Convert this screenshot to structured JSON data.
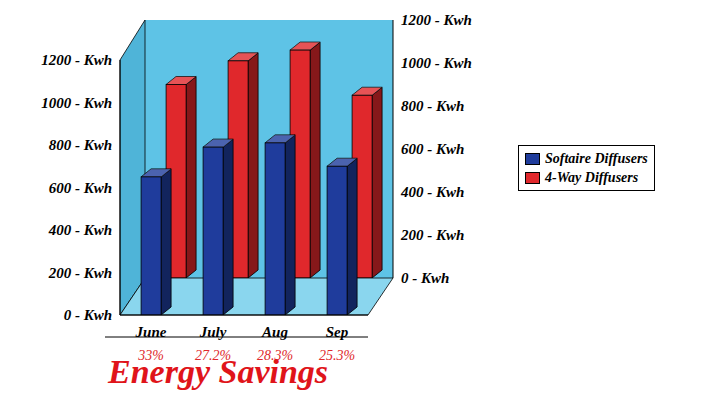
{
  "chart_data": {
    "type": "bar",
    "title": "Energy Savings",
    "categories": [
      "June",
      "July",
      "Aug",
      "Sep"
    ],
    "series": [
      {
        "name": "Softaire Diffusers",
        "color": "#1f3c9c",
        "values": [
          650,
          790,
          810,
          700
        ]
      },
      {
        "name": "4-Way Diffusers",
        "color": "#e0282c",
        "values": [
          900,
          1010,
          1060,
          850
        ],
        "axis": "y2"
      }
    ],
    "annotations": [
      "33%",
      "27.2%",
      "28.3%",
      "25.3%"
    ],
    "ylim": [
      0,
      1200
    ],
    "yticks": [
      {
        "value": 0,
        "label": "0 - Kwh"
      },
      {
        "value": 200,
        "label": "200 - Kwh"
      },
      {
        "value": 400,
        "label": "400 - Kwh"
      },
      {
        "value": 600,
        "label": "600 - Kwh"
      },
      {
        "value": 800,
        "label": "800 - Kwh"
      },
      {
        "value": 1000,
        "label": "1000 - Kwh"
      },
      {
        "value": 1200,
        "label": "1200 - Kwh"
      }
    ],
    "y2lim": [
      0,
      1200
    ],
    "y2ticks": [
      {
        "value": 0,
        "label": "0 - Kwh"
      },
      {
        "value": 200,
        "label": "200 - Kwh"
      },
      {
        "value": 400,
        "label": "400 - Kwh"
      },
      {
        "value": 600,
        "label": "600 - Kwh"
      },
      {
        "value": 800,
        "label": "800 - Kwh"
      },
      {
        "value": 1000,
        "label": "1000 - Kwh"
      },
      {
        "value": 1200,
        "label": "1200 - Kwh"
      }
    ],
    "legend": "right",
    "grid": false
  }
}
